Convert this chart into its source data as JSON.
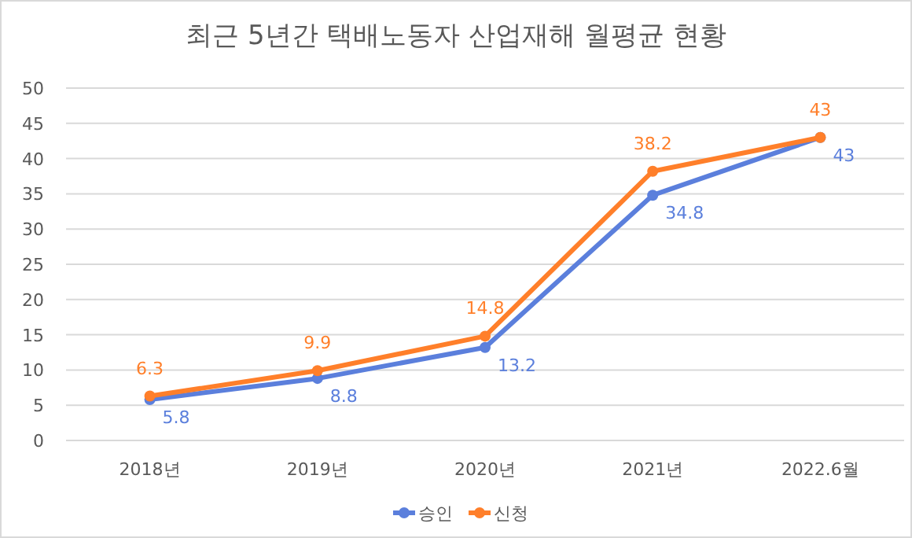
{
  "chart_data": {
    "type": "line",
    "title": "최근 5년간 택배노동자 산업재해 월평균 현황",
    "categories": [
      "2018년",
      "2019년",
      "2020년",
      "2021년",
      "2022.6월"
    ],
    "series": [
      {
        "name": "승인",
        "color": "#5b7fdc",
        "values": [
          5.8,
          8.8,
          13.2,
          34.8,
          43
        ]
      },
      {
        "name": "신청",
        "color": "#ff7f2a",
        "values": [
          6.3,
          9.9,
          14.8,
          38.2,
          43
        ]
      }
    ],
    "ylim": [
      0,
      50
    ],
    "yticks": [
      0,
      5,
      10,
      15,
      20,
      25,
      30,
      35,
      40,
      45,
      50
    ],
    "grid": "y",
    "legend": "bottom",
    "marker": "circle",
    "line_style": "solid",
    "data_labels": true
  }
}
